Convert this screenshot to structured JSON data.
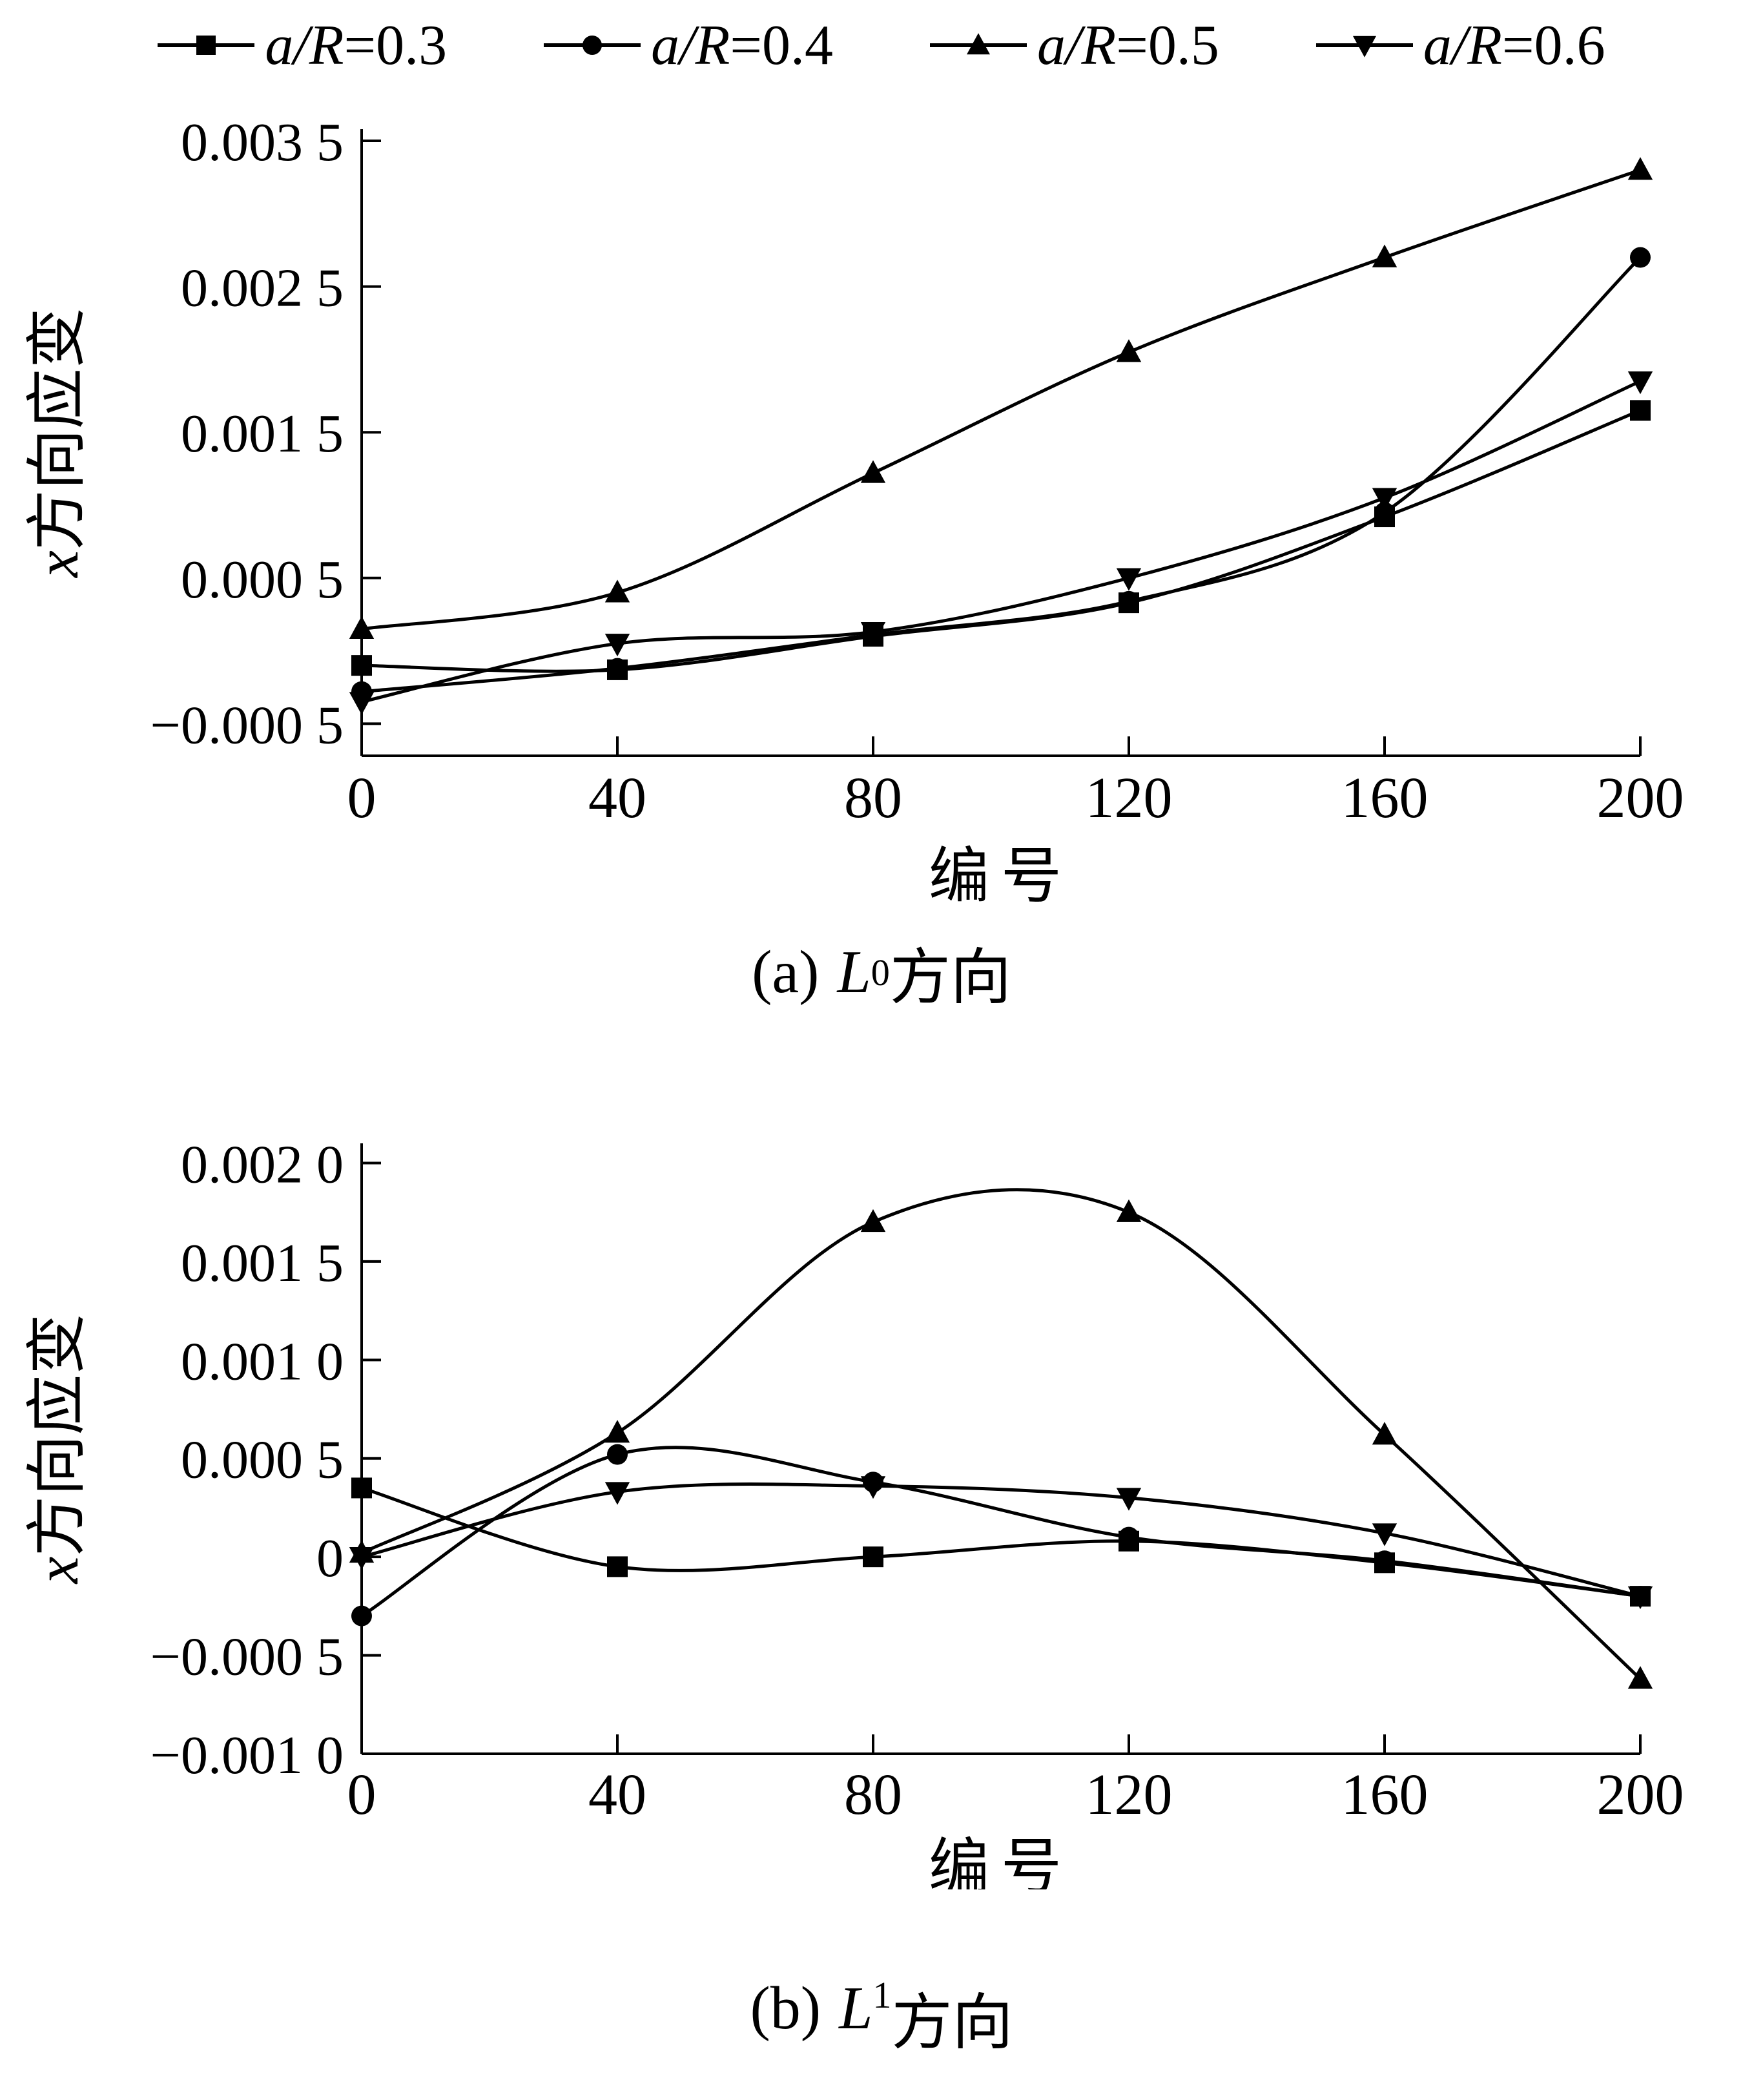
{
  "colors": {
    "line": "#000000",
    "background": "#ffffff"
  },
  "legend": [
    {
      "marker": "square",
      "label_italic": "a/R",
      "label_rest": "=0.3"
    },
    {
      "marker": "circle",
      "label_italic": "a/R",
      "label_rest": "=0.4"
    },
    {
      "marker": "triangle-up",
      "label_italic": "a/R",
      "label_rest": "=0.5"
    },
    {
      "marker": "triangle-down",
      "label_italic": "a/R",
      "label_rest": "=0.6"
    }
  ],
  "chart_data": [
    {
      "id": "a",
      "type": "line",
      "caption_prefix": "(a)",
      "caption_letter": "L",
      "caption_sub": "0",
      "caption_suffix": "方向",
      "xlabel": "编号",
      "ylabel_italic": "x",
      "ylabel_rest": "方向应变",
      "x": [
        0,
        40,
        80,
        120,
        160,
        200
      ],
      "xlim": [
        0,
        200
      ],
      "ylim": [
        -0.00072,
        0.00358
      ],
      "grid": false,
      "legend_position": "top",
      "xticks": [
        {
          "value": 0,
          "label": "0"
        },
        {
          "value": 40,
          "label": "40"
        },
        {
          "value": 80,
          "label": "80"
        },
        {
          "value": 120,
          "label": "120"
        },
        {
          "value": 160,
          "label": "160"
        },
        {
          "value": 200,
          "label": "200"
        }
      ],
      "yticks": [
        {
          "value": 0.0035,
          "label": "0.003 5"
        },
        {
          "value": 0.0025,
          "label": "0.002 5"
        },
        {
          "value": 0.0015,
          "label": "0.001 5"
        },
        {
          "value": 0.0005,
          "label": "0.000 5"
        },
        {
          "value": -0.0005,
          "label": "−0.000 5"
        }
      ],
      "series": [
        {
          "name": "a/R=0.3",
          "marker": "square",
          "values": [
            -0.0001,
            -0.00013,
            0.0001,
            0.00033,
            0.00092,
            0.00165
          ]
        },
        {
          "name": "a/R=0.4",
          "marker": "circle",
          "values": [
            -0.00028,
            -0.00012,
            0.00011,
            0.00034,
            0.00095,
            0.0027
          ]
        },
        {
          "name": "a/R=0.5",
          "marker": "triangle-up",
          "values": [
            0.00015,
            0.0004,
            0.00122,
            0.00205,
            0.0027,
            0.0033
          ]
        },
        {
          "name": "a/R=0.6",
          "marker": "triangle-down",
          "values": [
            -0.00035,
            5e-05,
            0.00013,
            0.0005,
            0.00105,
            0.00185
          ]
        }
      ]
    },
    {
      "id": "b",
      "type": "line",
      "caption_prefix": "(b)",
      "caption_letter": "L",
      "caption_sub": "1",
      "caption_suffix": "方向",
      "xlabel": "编号",
      "ylabel_italic": "x",
      "ylabel_rest": "方向应变",
      "x": [
        0,
        40,
        80,
        120,
        160,
        200
      ],
      "xlim": [
        0,
        200
      ],
      "ylim": [
        -0.001,
        0.0021
      ],
      "grid": false,
      "legend_position": "top",
      "xticks": [
        {
          "value": 0,
          "label": "0"
        },
        {
          "value": 40,
          "label": "40"
        },
        {
          "value": 80,
          "label": "80"
        },
        {
          "value": 120,
          "label": "120"
        },
        {
          "value": 160,
          "label": "160"
        },
        {
          "value": 200,
          "label": "200"
        }
      ],
      "yticks": [
        {
          "value": 0.002,
          "label": "0.002 0"
        },
        {
          "value": 0.0015,
          "label": "0.001 5"
        },
        {
          "value": 0.001,
          "label": "0.001 0"
        },
        {
          "value": 0.0005,
          "label": "0.000 5"
        },
        {
          "value": 0.0,
          "label": "0"
        },
        {
          "value": -0.0005,
          "label": "−0.000 5"
        },
        {
          "value": -0.001,
          "label": "−0.001 0"
        }
      ],
      "series": [
        {
          "name": "a/R=0.3",
          "marker": "square",
          "values": [
            0.00035,
            -5e-05,
            0.0,
            8e-05,
            -3e-05,
            -0.0002
          ]
        },
        {
          "name": "a/R=0.4",
          "marker": "circle",
          "values": [
            -0.0003,
            0.00052,
            0.00038,
            0.0001,
            -2e-05,
            -0.0002
          ]
        },
        {
          "name": "a/R=0.5",
          "marker": "triangle-up",
          "values": [
            2e-05,
            0.00063,
            0.0017,
            0.00175,
            0.00062,
            -0.00062
          ]
        },
        {
          "name": "a/R=0.6",
          "marker": "triangle-down",
          "values": [
            0.0,
            0.00033,
            0.00036,
            0.0003,
            0.00012,
            -0.0002
          ]
        }
      ]
    }
  ]
}
